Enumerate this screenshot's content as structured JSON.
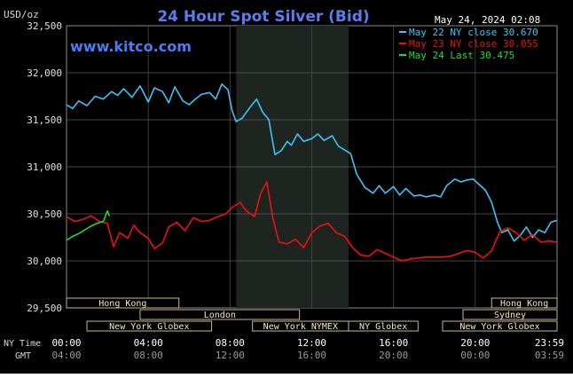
{
  "chart_data": {
    "type": "line",
    "title": "24 Hour Spot Silver (Bid)",
    "ylabel": "USD/oz",
    "timestamp": "May 24, 2024 02:08",
    "watermark": "www.kitco.com",
    "ylim": [
      29.5,
      32.5
    ],
    "y_ticks": [
      "32,500",
      "32,000",
      "31,500",
      "31,000",
      "30,500",
      "30,000",
      "29,500"
    ],
    "y_tick_values": [
      32.5,
      32.0,
      31.5,
      31.0,
      30.5,
      30.0,
      29.5
    ],
    "x_range": [
      0,
      24
    ],
    "x_ticks": [
      0,
      4,
      8,
      12,
      16,
      20,
      24
    ],
    "row_labels": {
      "ny": "NY Time",
      "gmt": "GMT"
    },
    "x_tick_labels_ny": [
      "00:00",
      "04:00",
      "08:00",
      "12:00",
      "16:00",
      "20:00",
      "23:59"
    ],
    "x_tick_labels_gmt": [
      "04:00",
      "08:00",
      "12:00",
      "16:00",
      "20:00",
      "00:00",
      "03:59"
    ],
    "shaded_hours": [
      8.3,
      13.8
    ],
    "series": [
      {
        "name": "May 22 NY close 30.670",
        "color": "#3fc3f5",
        "x": [
          0,
          0.3,
          0.6,
          1,
          1.4,
          1.8,
          2.2,
          2.5,
          2.8,
          3.2,
          3.6,
          4,
          4.3,
          4.7,
          5,
          5.3,
          5.7,
          6,
          6.3,
          6.6,
          7,
          7.3,
          7.6,
          7.9,
          8.1,
          8.3,
          8.6,
          9,
          9.3,
          9.6,
          9.9,
          10.2,
          10.5,
          10.8,
          11,
          11.3,
          11.6,
          12,
          12.3,
          12.6,
          13,
          13.3,
          13.6,
          13.9,
          14.2,
          14.6,
          15,
          15.3,
          15.6,
          16,
          16.3,
          16.6,
          17,
          17.3,
          17.6,
          18,
          18.3,
          18.6,
          19,
          19.3,
          19.6,
          19.9,
          20.2,
          20.5,
          20.8,
          21.1,
          21.3,
          21.6,
          21.9,
          22.2,
          22.5,
          22.8,
          23.1,
          23.4,
          23.7,
          23.99
        ],
        "values": [
          31.66,
          31.62,
          31.7,
          31.65,
          31.75,
          31.72,
          31.8,
          31.76,
          31.83,
          31.74,
          31.86,
          31.69,
          31.84,
          31.8,
          31.68,
          31.85,
          31.7,
          31.66,
          31.72,
          31.77,
          31.79,
          31.72,
          31.88,
          31.82,
          31.6,
          31.48,
          31.52,
          31.64,
          31.72,
          31.58,
          31.5,
          31.13,
          31.17,
          31.27,
          31.23,
          31.35,
          31.27,
          31.3,
          31.35,
          31.28,
          31.33,
          31.22,
          31.18,
          31.14,
          30.92,
          30.78,
          30.72,
          30.8,
          30.72,
          30.79,
          30.7,
          30.77,
          30.69,
          30.7,
          30.68,
          30.7,
          30.68,
          30.8,
          30.87,
          30.84,
          30.86,
          30.87,
          30.81,
          30.75,
          30.62,
          30.4,
          30.3,
          30.33,
          30.21,
          30.27,
          30.36,
          30.25,
          30.33,
          30.3,
          30.41,
          30.43
        ]
      },
      {
        "name": "May 23 NY close 30.055",
        "color": "#f01010",
        "x": [
          0,
          0.4,
          0.8,
          1.2,
          1.6,
          2,
          2.3,
          2.6,
          3,
          3.3,
          3.6,
          4,
          4.3,
          4.7,
          5,
          5.4,
          5.8,
          6.2,
          6.6,
          7,
          7.4,
          7.8,
          8.1,
          8.5,
          8.8,
          9.2,
          9.5,
          9.8,
          10.1,
          10.4,
          10.8,
          11.2,
          11.6,
          12,
          12.4,
          12.8,
          13.2,
          13.6,
          14,
          14.4,
          14.8,
          15.2,
          15.6,
          16,
          16.4,
          16.8,
          17.2,
          17.6,
          18,
          18.4,
          18.8,
          19.2,
          19.6,
          20,
          20.4,
          20.8,
          21.2,
          21.6,
          22,
          22.4,
          22.8,
          23.2,
          23.6,
          23.99
        ],
        "values": [
          30.47,
          30.42,
          30.44,
          30.48,
          30.42,
          30.4,
          30.15,
          30.3,
          30.24,
          30.38,
          30.3,
          30.24,
          30.13,
          30.19,
          30.36,
          30.41,
          30.32,
          30.46,
          30.42,
          30.43,
          30.47,
          30.5,
          30.57,
          30.62,
          30.53,
          30.47,
          30.72,
          30.84,
          30.45,
          30.2,
          30.18,
          30.23,
          30.14,
          30.3,
          30.37,
          30.4,
          30.3,
          30.26,
          30.14,
          30.06,
          30.05,
          30.12,
          30.08,
          30.04,
          30.0,
          30.02,
          30.03,
          30.04,
          30.04,
          30.04,
          30.05,
          30.08,
          30.11,
          30.09,
          30.03,
          30.11,
          30.31,
          30.35,
          30.3,
          30.22,
          30.28,
          30.2,
          30.21,
          30.2
        ]
      },
      {
        "name": "May 24 Last 30.475",
        "color": "#22dd22",
        "x": [
          0,
          0.3,
          0.6,
          0.9,
          1.2,
          1.5,
          1.8,
          2.0,
          2.1
        ],
        "values": [
          30.22,
          30.26,
          30.29,
          30.33,
          30.37,
          30.4,
          30.42,
          30.53,
          30.475
        ]
      }
    ],
    "session_bars": [
      {
        "label": "Hong Kong",
        "start": 0,
        "end": 5.5
      },
      {
        "label": "London",
        "start": 3.6,
        "end": 11.4
      },
      {
        "label": "New York Globex",
        "start": 1.0,
        "end": 7.1
      },
      {
        "label": "New York NYMEX",
        "start": 9.1,
        "end": 13.8
      },
      {
        "label": "NY Globex",
        "start": 13.8,
        "end": 17.2
      },
      {
        "label": "Sydney",
        "start": 19.4,
        "end": 24
      },
      {
        "label": "Hong Kong",
        "start": 20.8,
        "end": 24
      },
      {
        "label": "New York Globex",
        "start": 18.4,
        "end": 24
      }
    ]
  }
}
